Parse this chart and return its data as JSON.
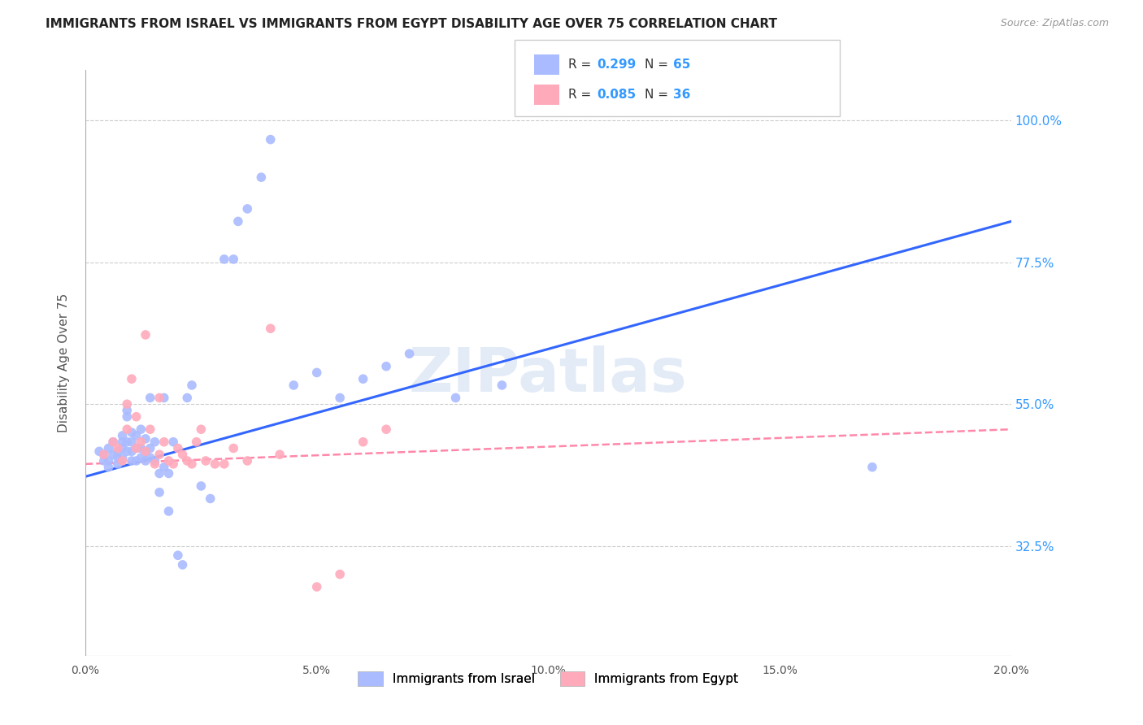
{
  "title": "IMMIGRANTS FROM ISRAEL VS IMMIGRANTS FROM EGYPT DISABILITY AGE OVER 75 CORRELATION CHART",
  "source": "Source: ZipAtlas.com",
  "ylabel": "Disability Age Over 75",
  "ytick_labels": [
    "100.0%",
    "77.5%",
    "55.0%",
    "32.5%"
  ],
  "ytick_values": [
    1.0,
    0.775,
    0.55,
    0.325
  ],
  "xlim": [
    0.0,
    0.2
  ],
  "ylim": [
    0.15,
    1.08
  ],
  "watermark": "ZIPatlas",
  "israel_color": "#aabbff",
  "egypt_color": "#ffaabb",
  "israel_line_color": "#3366ff",
  "egypt_line_color": "#ff88aa",
  "israel_scatter_x": [
    0.003,
    0.004,
    0.004,
    0.005,
    0.005,
    0.005,
    0.006,
    0.006,
    0.007,
    0.007,
    0.007,
    0.008,
    0.008,
    0.008,
    0.008,
    0.009,
    0.009,
    0.009,
    0.009,
    0.01,
    0.01,
    0.01,
    0.01,
    0.011,
    0.011,
    0.011,
    0.012,
    0.012,
    0.012,
    0.013,
    0.013,
    0.013,
    0.014,
    0.014,
    0.014,
    0.015,
    0.015,
    0.016,
    0.016,
    0.017,
    0.017,
    0.018,
    0.018,
    0.019,
    0.02,
    0.021,
    0.022,
    0.023,
    0.025,
    0.027,
    0.03,
    0.032,
    0.033,
    0.035,
    0.038,
    0.04,
    0.045,
    0.05,
    0.055,
    0.06,
    0.065,
    0.07,
    0.08,
    0.09,
    0.17
  ],
  "israel_scatter_y": [
    0.475,
    0.46,
    0.47,
    0.48,
    0.46,
    0.45,
    0.49,
    0.47,
    0.475,
    0.455,
    0.465,
    0.465,
    0.48,
    0.49,
    0.5,
    0.53,
    0.54,
    0.49,
    0.475,
    0.46,
    0.475,
    0.49,
    0.505,
    0.46,
    0.48,
    0.5,
    0.465,
    0.48,
    0.51,
    0.46,
    0.475,
    0.495,
    0.465,
    0.48,
    0.56,
    0.46,
    0.49,
    0.41,
    0.44,
    0.45,
    0.56,
    0.38,
    0.44,
    0.49,
    0.31,
    0.295,
    0.56,
    0.58,
    0.42,
    0.4,
    0.78,
    0.78,
    0.84,
    0.86,
    0.91,
    0.97,
    0.58,
    0.6,
    0.56,
    0.59,
    0.61,
    0.63,
    0.56,
    0.58,
    0.45
  ],
  "egypt_scatter_x": [
    0.004,
    0.006,
    0.007,
    0.008,
    0.009,
    0.009,
    0.01,
    0.011,
    0.011,
    0.012,
    0.013,
    0.013,
    0.014,
    0.015,
    0.016,
    0.016,
    0.017,
    0.018,
    0.019,
    0.02,
    0.021,
    0.022,
    0.023,
    0.024,
    0.025,
    0.026,
    0.028,
    0.03,
    0.032,
    0.035,
    0.04,
    0.042,
    0.05,
    0.055,
    0.06,
    0.065
  ],
  "egypt_scatter_y": [
    0.47,
    0.49,
    0.48,
    0.46,
    0.51,
    0.55,
    0.59,
    0.53,
    0.48,
    0.49,
    0.66,
    0.475,
    0.51,
    0.455,
    0.47,
    0.56,
    0.49,
    0.46,
    0.455,
    0.48,
    0.47,
    0.46,
    0.455,
    0.49,
    0.51,
    0.46,
    0.455,
    0.455,
    0.48,
    0.46,
    0.67,
    0.47,
    0.26,
    0.28,
    0.49,
    0.51
  ],
  "israel_trend_x": [
    0.0,
    0.2
  ],
  "israel_trend_y": [
    0.435,
    0.84
  ],
  "egypt_trend_x": [
    0.0,
    0.2
  ],
  "egypt_trend_y": [
    0.455,
    0.51
  ],
  "background_color": "#ffffff",
  "grid_color": "#cccccc"
}
